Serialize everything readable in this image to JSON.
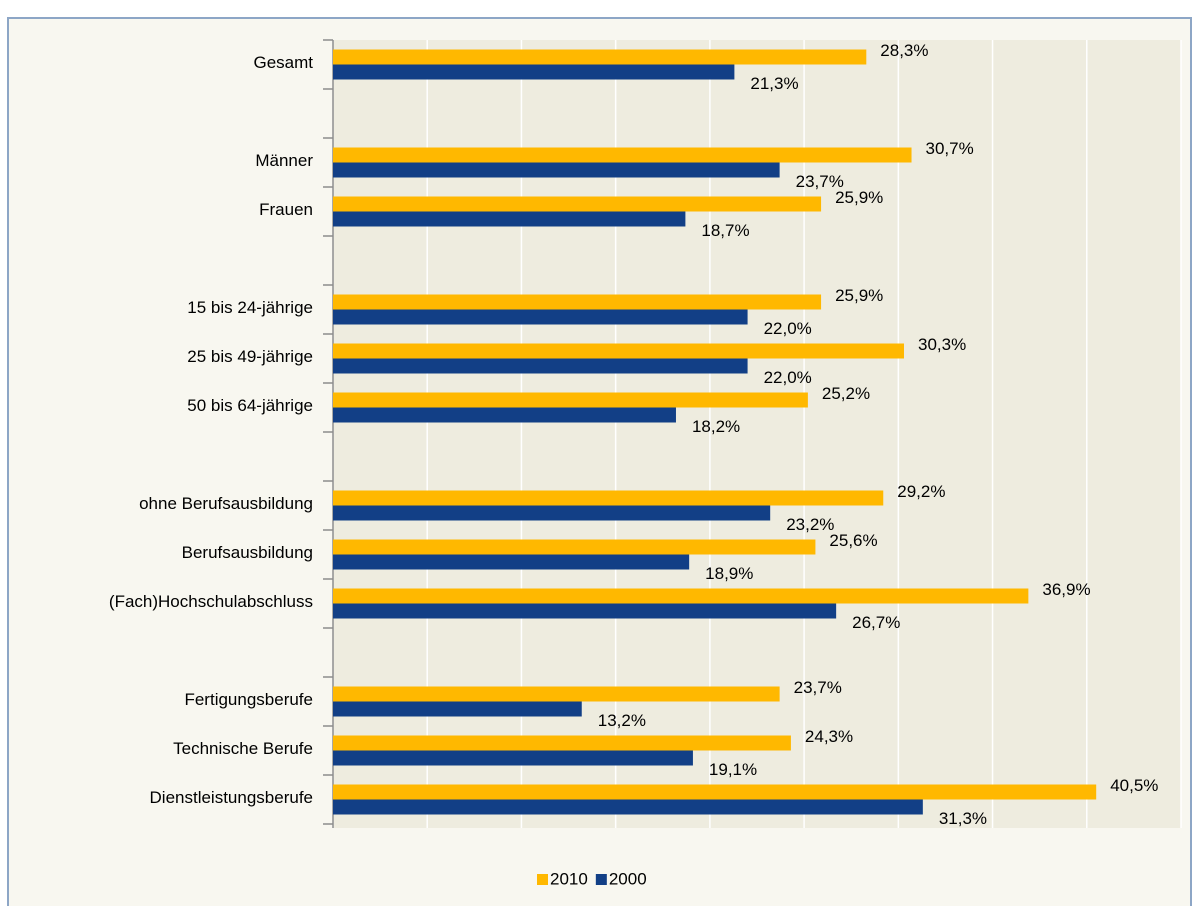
{
  "chart_data": {
    "type": "hbar",
    "categories": [
      "Gesamt",
      null,
      "Männer",
      "Frauen",
      null,
      "15 bis 24-jährige",
      "25 bis 49-jährige",
      "50 bis 64-jährige",
      null,
      "ohne Berufsausbildung",
      "Berufsausbildung",
      "(Fach)Hochschulabschluss",
      null,
      "Fertigungsberufe",
      "Technische Berufe",
      "Dienstleistungsberufe"
    ],
    "series": [
      {
        "name": "2010",
        "color": "#ffb800",
        "values": [
          28.3,
          null,
          30.7,
          25.9,
          null,
          25.9,
          30.3,
          25.2,
          null,
          29.2,
          25.6,
          36.9,
          null,
          23.7,
          24.3,
          40.5
        ],
        "value_labels": [
          "28,3%",
          null,
          "30,7%",
          "25,9%",
          null,
          "25,9%",
          "30,3%",
          "25,2%",
          null,
          "29,2%",
          "25,6%",
          "36,9%",
          null,
          "23,7%",
          "24,3%",
          "40,5%"
        ]
      },
      {
        "name": "2000",
        "color": "#123f86",
        "values": [
          21.3,
          null,
          23.7,
          18.7,
          null,
          22.0,
          22.0,
          18.2,
          null,
          23.2,
          18.9,
          26.7,
          null,
          13.2,
          19.1,
          31.3
        ],
        "value_labels": [
          "21,3%",
          null,
          "23,7%",
          "18,7%",
          null,
          "22,0%",
          "22,0%",
          "18,2%",
          null,
          "23,2%",
          "18,9%",
          "26,7%",
          null,
          "13,2%",
          "19,1%",
          "31,3%"
        ]
      }
    ],
    "xlim": [
      0,
      45
    ],
    "xticks": [
      0,
      5,
      10,
      15,
      20,
      25,
      30,
      35,
      40,
      45
    ],
    "grid": true,
    "legend": "bottom"
  }
}
